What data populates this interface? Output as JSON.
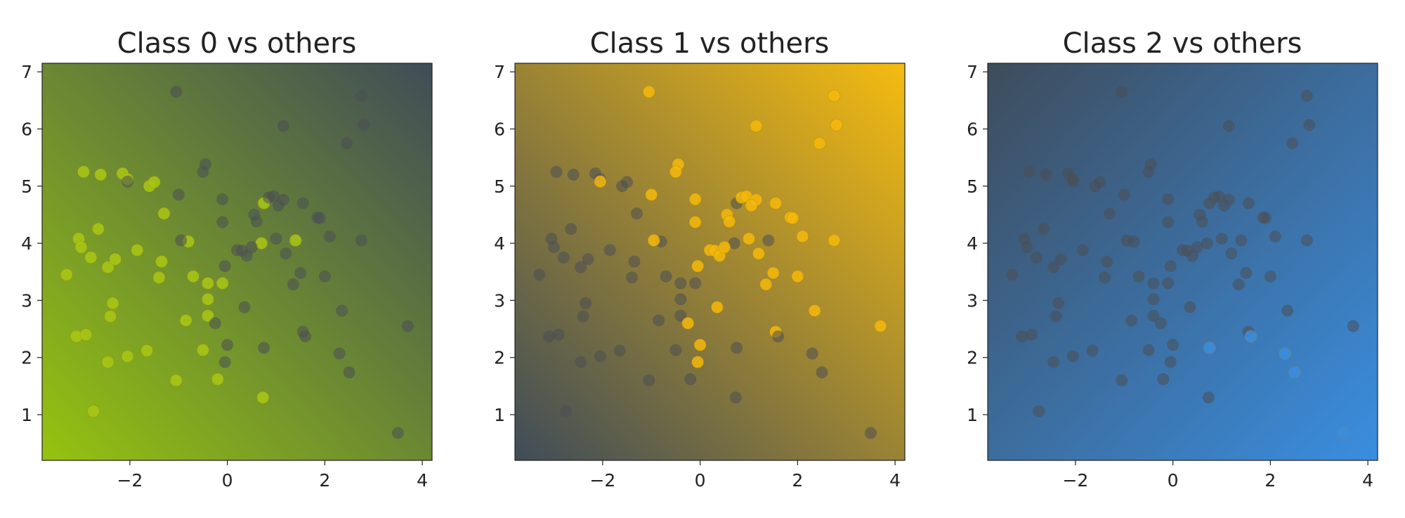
{
  "chart_data": [
    {
      "type": "scatter",
      "title": "Class 0 vs others",
      "highlight_class": 0,
      "highlight_color": "#a8c814",
      "background": {
        "low_color": "#95c30f",
        "high_color": "#414c58",
        "gradient": "diagonal-to-top-right"
      },
      "xlim": [
        -3.8,
        4.2
      ],
      "ylim": [
        0.2,
        7.15
      ],
      "xticks": [
        "−2",
        "0",
        "2",
        "4"
      ],
      "yticks": [
        "1",
        "2",
        "3",
        "4",
        "5",
        "6",
        "7"
      ],
      "grid": false
    },
    {
      "type": "scatter",
      "title": "Class 1 vs others",
      "highlight_class": 1,
      "highlight_color": "#f5b80a",
      "background": {
        "low_color": "#3f4c58",
        "high_color": "#f5bb10",
        "gradient": "diagonal-to-top-right"
      },
      "xlim": [
        -3.8,
        4.2
      ],
      "ylim": [
        0.2,
        7.15
      ],
      "xticks": [
        "−2",
        "0",
        "2",
        "4"
      ],
      "yticks": [
        "1",
        "2",
        "3",
        "4",
        "5",
        "6",
        "7"
      ],
      "grid": false
    },
    {
      "type": "scatter",
      "title": "Class 2 vs others",
      "highlight_class": 2,
      "highlight_color": "#3a8ee0",
      "background": {
        "low_color": "#3a8ee0",
        "high_color": "#3e4c5c",
        "gradient": "diagonal-to-bottom-right"
      },
      "xlim": [
        -3.8,
        4.2
      ],
      "ylim": [
        0.2,
        7.15
      ],
      "xticks": [
        "−2",
        "0",
        "2",
        "4"
      ],
      "yticks": [
        "1",
        "2",
        "3",
        "4",
        "5",
        "6",
        "7"
      ],
      "grid": false
    }
  ],
  "points": [
    {
      "x": -3.3,
      "y": 3.45,
      "c": 0
    },
    {
      "x": -2.95,
      "y": 5.25,
      "c": 0
    },
    {
      "x": -2.6,
      "y": 5.2,
      "c": 0
    },
    {
      "x": -2.15,
      "y": 5.22,
      "c": 0
    },
    {
      "x": -2.05,
      "y": 5.12,
      "c": 0
    },
    {
      "x": -1.6,
      "y": 5.0,
      "c": 0
    },
    {
      "x": -1.5,
      "y": 5.07,
      "c": 0
    },
    {
      "x": -3.05,
      "y": 4.08,
      "c": 0
    },
    {
      "x": -3.0,
      "y": 3.93,
      "c": 0
    },
    {
      "x": -2.65,
      "y": 4.25,
      "c": 0
    },
    {
      "x": -2.8,
      "y": 3.75,
      "c": 0
    },
    {
      "x": -2.45,
      "y": 3.58,
      "c": 0
    },
    {
      "x": -2.3,
      "y": 3.72,
      "c": 0
    },
    {
      "x": -1.85,
      "y": 3.88,
      "c": 0
    },
    {
      "x": -1.3,
      "y": 4.52,
      "c": 0
    },
    {
      "x": -1.35,
      "y": 3.68,
      "c": 0
    },
    {
      "x": -1.4,
      "y": 3.4,
      "c": 0
    },
    {
      "x": -0.8,
      "y": 4.03,
      "c": 0
    },
    {
      "x": -0.7,
      "y": 3.42,
      "c": 0
    },
    {
      "x": -0.4,
      "y": 3.3,
      "c": 0
    },
    {
      "x": -0.1,
      "y": 3.3,
      "c": 0
    },
    {
      "x": -0.4,
      "y": 3.02,
      "c": 0
    },
    {
      "x": -2.35,
      "y": 2.95,
      "c": 0
    },
    {
      "x": -2.4,
      "y": 2.72,
      "c": 0
    },
    {
      "x": -0.85,
      "y": 2.65,
      "c": 0
    },
    {
      "x": -0.4,
      "y": 2.73,
      "c": 0
    },
    {
      "x": -3.1,
      "y": 2.37,
      "c": 0
    },
    {
      "x": -2.9,
      "y": 2.4,
      "c": 0
    },
    {
      "x": -1.65,
      "y": 2.12,
      "c": 0
    },
    {
      "x": -0.5,
      "y": 2.13,
      "c": 0
    },
    {
      "x": -2.05,
      "y": 2.02,
      "c": 0
    },
    {
      "x": -2.45,
      "y": 1.92,
      "c": 0
    },
    {
      "x": -1.05,
      "y": 1.6,
      "c": 0
    },
    {
      "x": -0.2,
      "y": 1.62,
      "c": 0
    },
    {
      "x": -2.75,
      "y": 1.06,
      "c": 0
    },
    {
      "x": 0.75,
      "y": 4.7,
      "c": 0
    },
    {
      "x": 0.7,
      "y": 4.0,
      "c": 0
    },
    {
      "x": 1.4,
      "y": 4.05,
      "c": 0
    },
    {
      "x": 0.73,
      "y": 1.3,
      "c": 0
    },
    {
      "x": -1.05,
      "y": 6.65,
      "c": 1
    },
    {
      "x": 1.15,
      "y": 6.05,
      "c": 1
    },
    {
      "x": 2.75,
      "y": 6.58,
      "c": 1
    },
    {
      "x": 2.8,
      "y": 6.07,
      "c": 1
    },
    {
      "x": 2.45,
      "y": 5.75,
      "c": 1
    },
    {
      "x": -0.45,
      "y": 5.38,
      "c": 1
    },
    {
      "x": -0.5,
      "y": 5.25,
      "c": 1
    },
    {
      "x": -2.05,
      "y": 5.08,
      "c": 1
    },
    {
      "x": -1.0,
      "y": 4.85,
      "c": 1
    },
    {
      "x": -0.1,
      "y": 4.77,
      "c": 1
    },
    {
      "x": 0.85,
      "y": 4.8,
      "c": 1
    },
    {
      "x": 0.95,
      "y": 4.82,
      "c": 1
    },
    {
      "x": 1.15,
      "y": 4.76,
      "c": 1
    },
    {
      "x": 1.05,
      "y": 4.66,
      "c": 1
    },
    {
      "x": 1.55,
      "y": 4.7,
      "c": 1
    },
    {
      "x": 0.55,
      "y": 4.5,
      "c": 1
    },
    {
      "x": 0.6,
      "y": 4.38,
      "c": 1
    },
    {
      "x": -0.1,
      "y": 4.37,
      "c": 1
    },
    {
      "x": 1.85,
      "y": 4.45,
      "c": 1
    },
    {
      "x": 1.9,
      "y": 4.44,
      "c": 1
    },
    {
      "x": -0.95,
      "y": 4.05,
      "c": 1
    },
    {
      "x": 1.0,
      "y": 4.08,
      "c": 1
    },
    {
      "x": 2.1,
      "y": 4.12,
      "c": 1
    },
    {
      "x": 2.75,
      "y": 4.05,
      "c": 1
    },
    {
      "x": 0.2,
      "y": 3.88,
      "c": 1
    },
    {
      "x": 0.3,
      "y": 3.87,
      "c": 1
    },
    {
      "x": 0.4,
      "y": 3.78,
      "c": 1
    },
    {
      "x": 1.2,
      "y": 3.82,
      "c": 1
    },
    {
      "x": -0.05,
      "y": 3.6,
      "c": 1
    },
    {
      "x": 0.5,
      "y": 3.93,
      "c": 1
    },
    {
      "x": 1.5,
      "y": 3.48,
      "c": 1
    },
    {
      "x": 1.35,
      "y": 3.28,
      "c": 1
    },
    {
      "x": 2.0,
      "y": 3.42,
      "c": 1
    },
    {
      "x": 0.35,
      "y": 2.88,
      "c": 1
    },
    {
      "x": 2.35,
      "y": 2.82,
      "c": 1
    },
    {
      "x": -0.25,
      "y": 2.6,
      "c": 1
    },
    {
      "x": 3.7,
      "y": 2.55,
      "c": 1
    },
    {
      "x": 1.55,
      "y": 2.45,
      "c": 1
    },
    {
      "x": 0.0,
      "y": 2.22,
      "c": 1
    },
    {
      "x": -0.05,
      "y": 1.92,
      "c": 1
    },
    {
      "x": 0.75,
      "y": 2.17,
      "c": 2
    },
    {
      "x": 1.6,
      "y": 2.37,
      "c": 2
    },
    {
      "x": 2.3,
      "y": 2.07,
      "c": 2
    },
    {
      "x": 2.5,
      "y": 1.74,
      "c": 2
    },
    {
      "x": 3.5,
      "y": 0.68,
      "c": 2
    }
  ]
}
